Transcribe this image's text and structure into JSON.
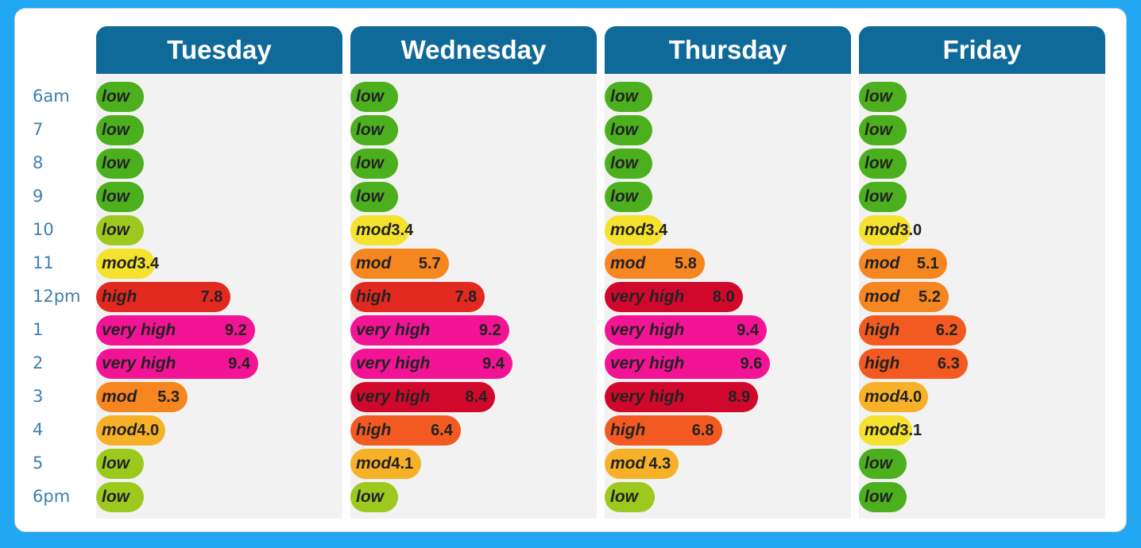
{
  "hours": [
    "6am",
    "7",
    "8",
    "9",
    "10",
    "11",
    "12pm",
    "1",
    "2",
    "3",
    "4",
    "5",
    "6pm"
  ],
  "colors": {
    "low": "#4caf1e",
    "low2": "#9dc91f",
    "mod_yellow": "#f5e22e",
    "mod_light": "#f7b128",
    "mod_orange": "#f58620",
    "high_orange": "#f25a22",
    "high_red": "#e2291f",
    "very_high_pink": "#f21495",
    "very_high_red": "#d0092c",
    "header": "#106a99"
  },
  "chart_data": {
    "type": "bar",
    "title": "",
    "categories": [
      "6am",
      "7",
      "8",
      "9",
      "10",
      "11",
      "12pm",
      "1",
      "2",
      "3",
      "4",
      "5",
      "6pm"
    ],
    "xlim": [
      0,
      10
    ],
    "series": [
      {
        "name": "Tuesday",
        "points": [
          {
            "label": "low",
            "value": null,
            "level": 1.2,
            "color": "low"
          },
          {
            "label": "low",
            "value": null,
            "level": 1.2,
            "color": "low"
          },
          {
            "label": "low",
            "value": null,
            "level": 1.2,
            "color": "low"
          },
          {
            "label": "low",
            "value": null,
            "level": 1.2,
            "color": "low"
          },
          {
            "label": "low",
            "value": null,
            "level": 2.4,
            "color": "low2"
          },
          {
            "label": "mod",
            "value": "3.4",
            "level": 3.4,
            "color": "mod_yellow"
          },
          {
            "label": "high",
            "value": "7.8",
            "level": 7.8,
            "color": "high_red"
          },
          {
            "label": "very high",
            "value": "9.2",
            "level": 9.2,
            "color": "very_high_pink"
          },
          {
            "label": "very high",
            "value": "9.4",
            "level": 9.4,
            "color": "very_high_pink"
          },
          {
            "label": "mod",
            "value": "5.3",
            "level": 5.3,
            "color": "mod_orange"
          },
          {
            "label": "mod",
            "value": "4.0",
            "level": 4.0,
            "color": "mod_light"
          },
          {
            "label": "low",
            "value": null,
            "level": 2.4,
            "color": "low2"
          },
          {
            "label": "low",
            "value": null,
            "level": 2.4,
            "color": "low2"
          }
        ]
      },
      {
        "name": "Wednesday",
        "points": [
          {
            "label": "low",
            "value": null,
            "level": 1.2,
            "color": "low"
          },
          {
            "label": "low",
            "value": null,
            "level": 1.2,
            "color": "low"
          },
          {
            "label": "low",
            "value": null,
            "level": 1.2,
            "color": "low"
          },
          {
            "label": "low",
            "value": null,
            "level": 1.8,
            "color": "low"
          },
          {
            "label": "mod",
            "value": "3.4",
            "level": 3.4,
            "color": "mod_yellow"
          },
          {
            "label": "mod",
            "value": "5.7",
            "level": 5.7,
            "color": "mod_orange"
          },
          {
            "label": "high",
            "value": "7.8",
            "level": 7.8,
            "color": "high_red"
          },
          {
            "label": "very high",
            "value": "9.2",
            "level": 9.2,
            "color": "very_high_pink"
          },
          {
            "label": "very high",
            "value": "9.4",
            "level": 9.4,
            "color": "very_high_pink"
          },
          {
            "label": "very high",
            "value": "8.4",
            "level": 8.4,
            "color": "very_high_red"
          },
          {
            "label": "high",
            "value": "6.4",
            "level": 6.4,
            "color": "high_orange"
          },
          {
            "label": "mod",
            "value": "4.1",
            "level": 4.1,
            "color": "mod_light"
          },
          {
            "label": "low",
            "value": null,
            "level": 2.6,
            "color": "low2"
          }
        ]
      },
      {
        "name": "Thursday",
        "points": [
          {
            "label": "low",
            "value": null,
            "level": 1.2,
            "color": "low"
          },
          {
            "label": "low",
            "value": null,
            "level": 1.2,
            "color": "low"
          },
          {
            "label": "low",
            "value": null,
            "level": 1.2,
            "color": "low"
          },
          {
            "label": "low",
            "value": null,
            "level": 1.8,
            "color": "low"
          },
          {
            "label": "mod",
            "value": "3.4",
            "level": 3.4,
            "color": "mod_yellow"
          },
          {
            "label": "mod",
            "value": "5.8",
            "level": 5.8,
            "color": "mod_orange"
          },
          {
            "label": "very high",
            "value": "8.0",
            "level": 8.0,
            "color": "very_high_red"
          },
          {
            "label": "very high",
            "value": "9.4",
            "level": 9.4,
            "color": "very_high_pink"
          },
          {
            "label": "very high",
            "value": "9.6",
            "level": 9.6,
            "color": "very_high_pink"
          },
          {
            "label": "very high",
            "value": "8.9",
            "level": 8.9,
            "color": "very_high_red"
          },
          {
            "label": "high",
            "value": "6.8",
            "level": 6.8,
            "color": "high_orange"
          },
          {
            "label": "mod",
            "value": "4.3",
            "level": 4.3,
            "color": "mod_light"
          },
          {
            "label": "low",
            "value": null,
            "level": 2.9,
            "color": "low2"
          }
        ]
      },
      {
        "name": "Friday",
        "points": [
          {
            "label": "low",
            "value": null,
            "level": 1.2,
            "color": "low"
          },
          {
            "label": "low",
            "value": null,
            "level": 1.2,
            "color": "low"
          },
          {
            "label": "low",
            "value": null,
            "level": 1.2,
            "color": "low"
          },
          {
            "label": "low",
            "value": null,
            "level": 1.8,
            "color": "low"
          },
          {
            "label": "mod",
            "value": "3.0",
            "level": 3.0,
            "color": "mod_yellow"
          },
          {
            "label": "mod",
            "value": "5.1",
            "level": 5.1,
            "color": "mod_orange"
          },
          {
            "label": "mod",
            "value": "5.2",
            "level": 5.2,
            "color": "mod_orange"
          },
          {
            "label": "high",
            "value": "6.2",
            "level": 6.2,
            "color": "high_orange"
          },
          {
            "label": "high",
            "value": "6.3",
            "level": 6.3,
            "color": "high_orange"
          },
          {
            "label": "mod",
            "value": "4.0",
            "level": 4.0,
            "color": "mod_light"
          },
          {
            "label": "mod",
            "value": "3.1",
            "level": 3.1,
            "color": "mod_yellow"
          },
          {
            "label": "low",
            "value": null,
            "level": 2.4,
            "color": "low"
          },
          {
            "label": "low",
            "value": null,
            "level": 1.8,
            "color": "low"
          }
        ]
      }
    ]
  }
}
